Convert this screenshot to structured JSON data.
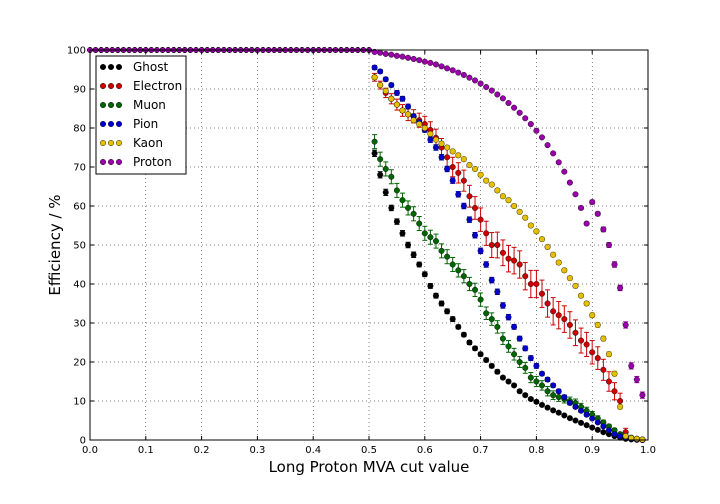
{
  "chart_data": {
    "type": "scatter",
    "xlabel": "Long Proton MVA cut value",
    "ylabel": "Efficiency / %",
    "xlim": [
      0.0,
      1.0
    ],
    "ylim": [
      0,
      100
    ],
    "xticks": [
      "0.0",
      "0.1",
      "0.2",
      "0.3",
      "0.4",
      "0.5",
      "0.6",
      "0.7",
      "0.8",
      "0.9",
      "1.0"
    ],
    "yticks": [
      "0",
      "10",
      "20",
      "30",
      "40",
      "50",
      "60",
      "70",
      "80",
      "90",
      "100"
    ],
    "grid": true,
    "legend_position": "top-left",
    "series": [
      {
        "name": "Ghost",
        "color": "#000000",
        "x": [
          0.51,
          0.52,
          0.53,
          0.54,
          0.55,
          0.56,
          0.57,
          0.58,
          0.59,
          0.6,
          0.61,
          0.62,
          0.63,
          0.64,
          0.65,
          0.66,
          0.67,
          0.68,
          0.69,
          0.7,
          0.71,
          0.72,
          0.73,
          0.74,
          0.75,
          0.76,
          0.77,
          0.78,
          0.79,
          0.8,
          0.81,
          0.82,
          0.83,
          0.84,
          0.85,
          0.86,
          0.87,
          0.88,
          0.89,
          0.9,
          0.91,
          0.92,
          0.93,
          0.94,
          0.95,
          0.96,
          0.97,
          0.98,
          0.99
        ],
        "y": [
          73.5,
          68.0,
          63.5,
          59.5,
          56.0,
          53.0,
          50.0,
          47.5,
          45.0,
          42.5,
          39.5,
          37.0,
          35.0,
          33.0,
          31.0,
          29.0,
          27.0,
          25.0,
          23.5,
          22.0,
          20.5,
          19.0,
          17.5,
          16.0,
          15.0,
          14.0,
          12.5,
          11.5,
          10.5,
          9.8,
          9.0,
          8.3,
          7.6,
          7.0,
          6.3,
          5.6,
          5.0,
          4.4,
          3.8,
          3.2,
          2.6,
          2.0,
          1.5,
          1.0,
          0.6,
          0.3,
          0.15,
          0.05,
          0.0
        ],
        "err": [
          0.8,
          0.8,
          0.8,
          0.7,
          0.7,
          0.7,
          0.7,
          0.7,
          0.6,
          0.6,
          0.6,
          0.6,
          0.6,
          0.6,
          0.6,
          0.5,
          0.5,
          0.5,
          0.5,
          0.5,
          0.5,
          0.5,
          0.5,
          0.4,
          0.4,
          0.4,
          0.4,
          0.4,
          0.4,
          0.4,
          0.3,
          0.3,
          0.3,
          0.3,
          0.3,
          0.3,
          0.3,
          0.3,
          0.3,
          0.3,
          0.2,
          0.2,
          0.2,
          0.2,
          0.1,
          0.1,
          0.1,
          0.1,
          0.0
        ]
      },
      {
        "name": "Electron",
        "color": "#cc0000",
        "x": [
          0.51,
          0.52,
          0.53,
          0.54,
          0.55,
          0.56,
          0.57,
          0.58,
          0.59,
          0.6,
          0.61,
          0.62,
          0.63,
          0.64,
          0.65,
          0.66,
          0.67,
          0.68,
          0.69,
          0.7,
          0.71,
          0.72,
          0.73,
          0.74,
          0.75,
          0.76,
          0.77,
          0.78,
          0.79,
          0.8,
          0.81,
          0.82,
          0.83,
          0.84,
          0.85,
          0.86,
          0.87,
          0.88,
          0.89,
          0.9,
          0.91,
          0.92,
          0.93,
          0.94,
          0.95,
          0.96,
          0.97,
          0.98,
          0.99
        ],
        "y": [
          93.0,
          91.0,
          89.0,
          87.5,
          86.0,
          84.5,
          83.5,
          83.0,
          82.0,
          81.0,
          79.5,
          77.5,
          75.0,
          72.5,
          70.0,
          68.5,
          66.5,
          62.5,
          59.5,
          56.5,
          53.0,
          50.0,
          50.0,
          48.0,
          46.5,
          46.0,
          45.0,
          42.0,
          40.0,
          40.0,
          37.5,
          35.0,
          33.0,
          32.0,
          31.0,
          29.5,
          27.5,
          25.5,
          24.5,
          22.5,
          21.0,
          18.0,
          15.0,
          12.5,
          10.0,
          2.0,
          0.5,
          0.3,
          0.1
        ],
        "err": [
          1.0,
          1.0,
          1.2,
          1.3,
          1.4,
          1.5,
          1.6,
          1.7,
          1.8,
          2.0,
          2.1,
          2.2,
          2.3,
          2.4,
          2.5,
          2.6,
          2.7,
          2.8,
          2.9,
          3.0,
          3.1,
          3.2,
          3.3,
          3.3,
          3.4,
          3.4,
          3.5,
          3.5,
          3.5,
          3.5,
          3.5,
          3.5,
          3.5,
          3.5,
          3.4,
          3.4,
          3.3,
          3.2,
          3.1,
          3.0,
          2.9,
          2.7,
          2.5,
          2.2,
          2.0,
          1.0,
          0.5,
          0.3,
          0.1
        ]
      },
      {
        "name": "Muon",
        "color": "#006400",
        "x": [
          0.51,
          0.52,
          0.53,
          0.54,
          0.55,
          0.56,
          0.57,
          0.58,
          0.59,
          0.6,
          0.61,
          0.62,
          0.63,
          0.64,
          0.65,
          0.66,
          0.67,
          0.68,
          0.69,
          0.7,
          0.71,
          0.72,
          0.73,
          0.74,
          0.75,
          0.76,
          0.77,
          0.78,
          0.79,
          0.8,
          0.81,
          0.82,
          0.83,
          0.84,
          0.85,
          0.86,
          0.87,
          0.88,
          0.89,
          0.9,
          0.91,
          0.92,
          0.93,
          0.94,
          0.95,
          0.96,
          0.97,
          0.98,
          0.99
        ],
        "y": [
          76.5,
          72.0,
          69.5,
          67.5,
          64.0,
          61.5,
          59.5,
          58.0,
          55.5,
          53.0,
          52.0,
          51.0,
          48.5,
          47.0,
          45.0,
          43.5,
          42.0,
          40.0,
          38.5,
          36.0,
          32.5,
          31.0,
          29.0,
          26.0,
          24.0,
          22.0,
          20.0,
          18.5,
          16.0,
          15.0,
          14.0,
          12.5,
          11.5,
          11.0,
          10.5,
          10.0,
          9.5,
          8.5,
          7.5,
          6.5,
          5.5,
          4.5,
          3.5,
          2.5,
          1.5,
          1.0,
          0.6,
          0.3,
          0.1
        ],
        "err": [
          1.8,
          1.8,
          1.8,
          1.8,
          1.8,
          1.8,
          1.8,
          1.8,
          1.8,
          1.8,
          1.8,
          1.8,
          1.8,
          1.8,
          1.8,
          1.7,
          1.7,
          1.7,
          1.7,
          1.7,
          1.6,
          1.6,
          1.6,
          1.5,
          1.5,
          1.5,
          1.4,
          1.4,
          1.3,
          1.3,
          1.2,
          1.2,
          1.1,
          1.1,
          1.0,
          1.0,
          1.0,
          0.9,
          0.9,
          0.8,
          0.7,
          0.6,
          0.5,
          0.5,
          0.4,
          0.3,
          0.2,
          0.1,
          0.1
        ]
      },
      {
        "name": "Pion",
        "color": "#0000cc",
        "x": [
          0.51,
          0.52,
          0.53,
          0.54,
          0.55,
          0.56,
          0.57,
          0.58,
          0.59,
          0.6,
          0.61,
          0.62,
          0.63,
          0.64,
          0.65,
          0.66,
          0.67,
          0.68,
          0.69,
          0.7,
          0.71,
          0.72,
          0.73,
          0.74,
          0.75,
          0.76,
          0.77,
          0.78,
          0.79,
          0.8,
          0.81,
          0.82,
          0.83,
          0.84,
          0.85,
          0.86,
          0.87,
          0.88,
          0.89,
          0.9,
          0.91,
          0.92,
          0.93,
          0.94,
          0.95,
          0.96,
          0.97,
          0.98,
          0.99
        ],
        "y": [
          95.5,
          94.5,
          92.5,
          91.0,
          89.0,
          87.5,
          85.5,
          83.0,
          81.5,
          79.5,
          77.0,
          75.0,
          72.5,
          69.5,
          66.5,
          63.0,
          60.0,
          56.5,
          52.5,
          48.5,
          45.0,
          41.0,
          38.0,
          34.5,
          31.5,
          29.0,
          26.0,
          23.5,
          21.0,
          19.0,
          17.0,
          15.5,
          14.0,
          12.5,
          11.0,
          9.5,
          8.5,
          7.5,
          6.5,
          5.5,
          4.5,
          3.5,
          2.5,
          1.5,
          1.0,
          0.6,
          0.3,
          0.1,
          0.0
        ],
        "err": [
          0.5,
          0.5,
          0.5,
          0.5,
          0.6,
          0.6,
          0.6,
          0.6,
          0.6,
          0.6,
          0.7,
          0.7,
          0.7,
          0.7,
          0.7,
          0.7,
          0.7,
          0.7,
          0.7,
          0.7,
          0.7,
          0.7,
          0.7,
          0.7,
          0.7,
          0.6,
          0.6,
          0.6,
          0.6,
          0.6,
          0.5,
          0.5,
          0.5,
          0.5,
          0.5,
          0.4,
          0.4,
          0.4,
          0.4,
          0.3,
          0.3,
          0.3,
          0.2,
          0.2,
          0.2,
          0.1,
          0.1,
          0.1,
          0.0
        ]
      },
      {
        "name": "Kaon",
        "color": "#e6c000",
        "x": [
          0.51,
          0.52,
          0.53,
          0.54,
          0.55,
          0.56,
          0.57,
          0.58,
          0.59,
          0.6,
          0.61,
          0.62,
          0.63,
          0.64,
          0.65,
          0.66,
          0.67,
          0.68,
          0.69,
          0.7,
          0.71,
          0.72,
          0.73,
          0.74,
          0.75,
          0.76,
          0.77,
          0.78,
          0.79,
          0.8,
          0.81,
          0.82,
          0.83,
          0.84,
          0.85,
          0.86,
          0.87,
          0.88,
          0.89,
          0.9,
          0.91,
          0.92,
          0.93,
          0.94,
          0.95,
          0.96,
          0.97,
          0.98,
          0.99
        ],
        "y": [
          93.0,
          91.0,
          89.5,
          87.5,
          86.0,
          84.5,
          83.5,
          82.0,
          81.0,
          80.0,
          78.5,
          77.0,
          76.0,
          75.0,
          74.0,
          73.0,
          72.0,
          70.5,
          69.5,
          68.0,
          66.5,
          65.5,
          64.0,
          62.5,
          61.5,
          60.0,
          58.5,
          57.0,
          55.0,
          53.5,
          51.5,
          49.5,
          47.5,
          45.5,
          43.5,
          41.5,
          39.5,
          37.0,
          35.0,
          32.0,
          29.5,
          26.0,
          22.0,
          17.0,
          8.5,
          1.0,
          0.5,
          0.3,
          0.1
        ],
        "err": [
          0.5,
          0.5,
          0.5,
          0.5,
          0.5,
          0.5,
          0.5,
          0.5,
          0.5,
          0.5,
          0.5,
          0.5,
          0.5,
          0.5,
          0.5,
          0.5,
          0.5,
          0.5,
          0.5,
          0.5,
          0.5,
          0.5,
          0.5,
          0.5,
          0.5,
          0.5,
          0.5,
          0.5,
          0.5,
          0.5,
          0.5,
          0.5,
          0.5,
          0.5,
          0.5,
          0.5,
          0.5,
          0.5,
          0.5,
          0.6,
          0.6,
          0.6,
          0.6,
          0.6,
          0.5,
          0.3,
          0.2,
          0.2,
          0.1
        ]
      },
      {
        "name": "Proton",
        "color": "#9900aa",
        "x": [
          0.51,
          0.52,
          0.53,
          0.54,
          0.55,
          0.56,
          0.57,
          0.58,
          0.59,
          0.6,
          0.61,
          0.62,
          0.63,
          0.64,
          0.65,
          0.66,
          0.67,
          0.68,
          0.69,
          0.7,
          0.71,
          0.72,
          0.73,
          0.74,
          0.75,
          0.76,
          0.77,
          0.78,
          0.79,
          0.8,
          0.81,
          0.82,
          0.83,
          0.84,
          0.85,
          0.86,
          0.87,
          0.88,
          0.89,
          0.9,
          0.91,
          0.92,
          0.93,
          0.94,
          0.95,
          0.96,
          0.97,
          0.98,
          0.99
        ],
        "y": [
          99.5,
          99.3,
          99.0,
          98.8,
          98.5,
          98.3,
          98.0,
          97.7,
          97.4,
          97.0,
          96.7,
          96.3,
          95.8,
          95.3,
          94.8,
          94.2,
          93.6,
          92.9,
          92.2,
          91.4,
          90.5,
          89.6,
          88.6,
          87.6,
          86.4,
          85.2,
          83.9,
          82.5,
          81.0,
          79.3,
          77.6,
          75.6,
          73.5,
          71.2,
          68.8,
          66.0,
          63.0,
          59.5,
          55.5,
          61.0,
          58.0,
          54.0,
          50.0,
          45.0,
          39.0,
          29.5,
          19.0,
          15.5,
          11.5
        ],
        "err": [
          0.1,
          0.1,
          0.1,
          0.1,
          0.1,
          0.1,
          0.1,
          0.1,
          0.1,
          0.1,
          0.1,
          0.1,
          0.1,
          0.1,
          0.1,
          0.1,
          0.1,
          0.1,
          0.1,
          0.1,
          0.2,
          0.2,
          0.2,
          0.2,
          0.2,
          0.2,
          0.2,
          0.2,
          0.2,
          0.2,
          0.2,
          0.3,
          0.3,
          0.3,
          0.3,
          0.3,
          0.3,
          0.4,
          0.4,
          0.5,
          0.5,
          0.6,
          0.6,
          0.7,
          0.7,
          0.8,
          0.8,
          0.8,
          0.8
        ]
      }
    ]
  }
}
